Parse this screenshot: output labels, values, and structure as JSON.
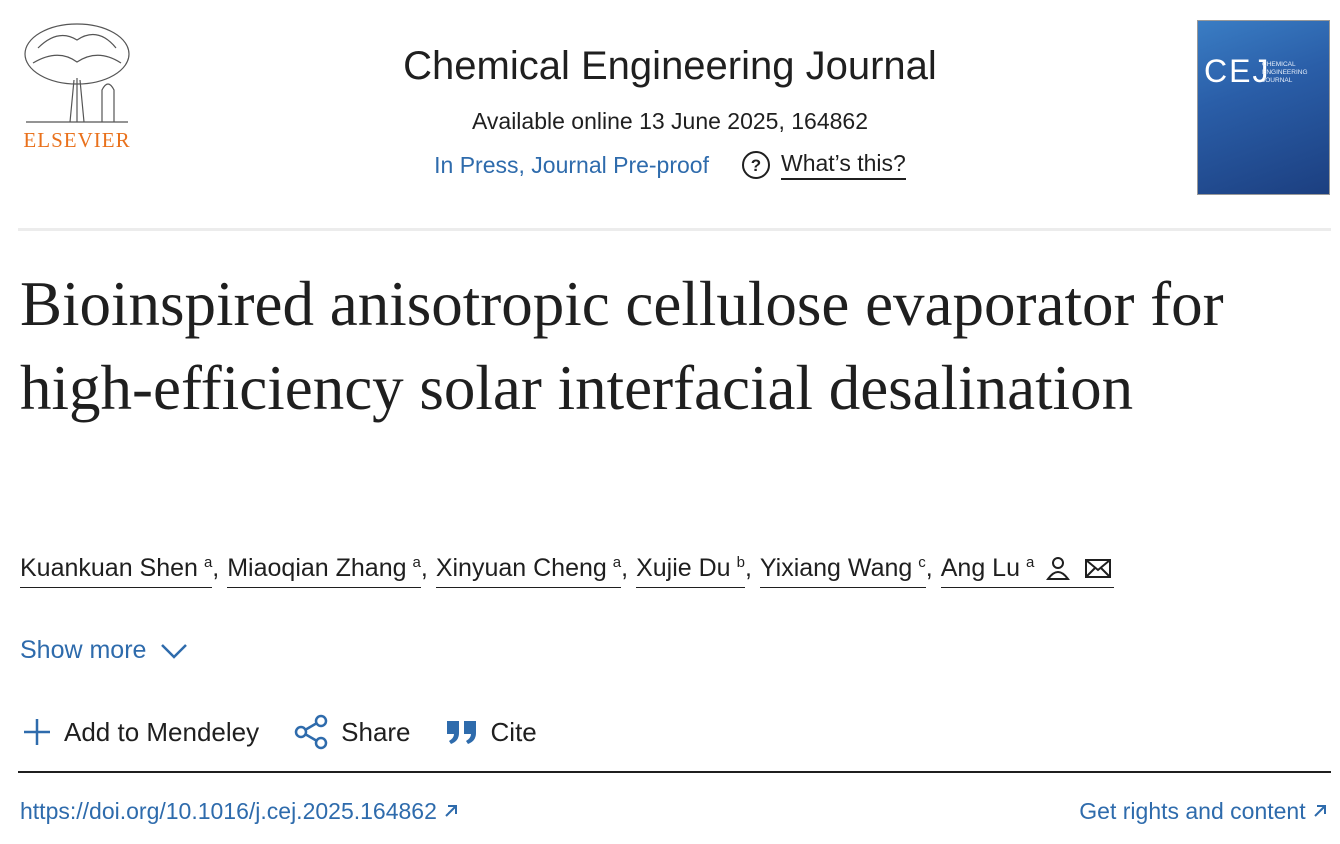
{
  "header": {
    "publisher": "ELSEVIER",
    "journal": "Chemical Engineering Journal",
    "available": "Available online 13 June 2025, 164862",
    "status": "In Press, Journal Pre-proof",
    "whats_this": "What’s this?",
    "cover": {
      "abbreviation": "CEJ",
      "name": "CHEMICAL ENGINEERING JOURNAL"
    }
  },
  "article": {
    "title": "Bioinspired anisotropic cellulose evaporator for high-efficiency solar interfacial desalination",
    "separator": ",",
    "authors": [
      {
        "name": "Kuankuan Shen",
        "affiliation": "a"
      },
      {
        "name": "Miaoqian Zhang",
        "affiliation": "a"
      },
      {
        "name": "Xinyuan Cheng",
        "affiliation": "a"
      },
      {
        "name": "Xujie Du",
        "affiliation": "b"
      },
      {
        "name": "Yixiang Wang",
        "affiliation": "c"
      },
      {
        "name": "Ang Lu",
        "affiliation": "a"
      }
    ],
    "show_more": "Show more",
    "actions": [
      "Add to Mendeley",
      "Share",
      "Cite"
    ],
    "doi": "https://doi.org/10.1016/j.cej.2025.164862",
    "rights": "Get rights and content"
  }
}
